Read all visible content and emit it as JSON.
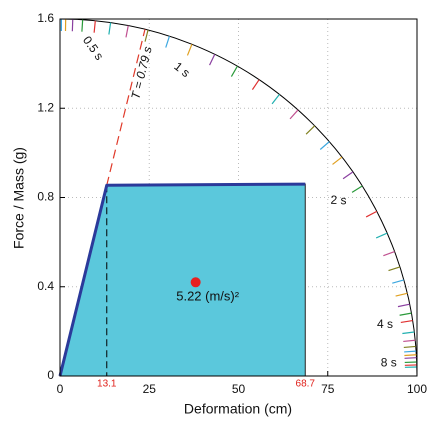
{
  "chart_data": {
    "type": "capacity",
    "xlabel": "Deformation (cm)",
    "ylabel": "Force / Mass (g)",
    "xlim": [
      0,
      100
    ],
    "ylim": [
      0,
      1.6
    ],
    "xticks": [
      0,
      25,
      50,
      75,
      100
    ],
    "yticks": [
      0,
      0.4,
      0.8,
      1.2,
      1.6
    ],
    "grid": true,
    "curve": {
      "x": [
        0,
        13.1,
        68.7
      ],
      "y": [
        0,
        0.855,
        0.86
      ],
      "color": "#2b3a9a",
      "fill": "#5bc8dc",
      "marker_color": "#e0201a"
    },
    "period_line": {
      "label": "T = 0.79 s",
      "color": "#e03a2a"
    },
    "point": {
      "x": 38,
      "y": 0.42,
      "label": "5.22 (m/s)²",
      "color": "#e82020"
    },
    "arc": {
      "periods": [
        0.1,
        0.2,
        0.3,
        0.4,
        0.5,
        0.6,
        0.7,
        0.8,
        0.9,
        1,
        1.1,
        1.2,
        1.3,
        1.4,
        1.5,
        1.6,
        1.7,
        1.8,
        1.9,
        2,
        2.2,
        2.4,
        2.6,
        2.8,
        3,
        3.25,
        3.5,
        3.75,
        4,
        4.5,
        5,
        5.5,
        6,
        6.5,
        7,
        8,
        9,
        10
      ],
      "colors": [
        "#3da8e0",
        "#e0a020",
        "#8a3fa0",
        "#2a9a3a",
        "#e03030",
        "#20b0b0",
        "#c05090",
        "#808020"
      ],
      "labels": [
        {
          "value": 0.5,
          "label": "0.5 s"
        },
        {
          "value": 1,
          "label": "1 s"
        },
        {
          "value": 2,
          "label": "2 s"
        },
        {
          "value": 4,
          "label": "4 s"
        },
        {
          "value": 8,
          "label": "8 s"
        }
      ]
    }
  }
}
